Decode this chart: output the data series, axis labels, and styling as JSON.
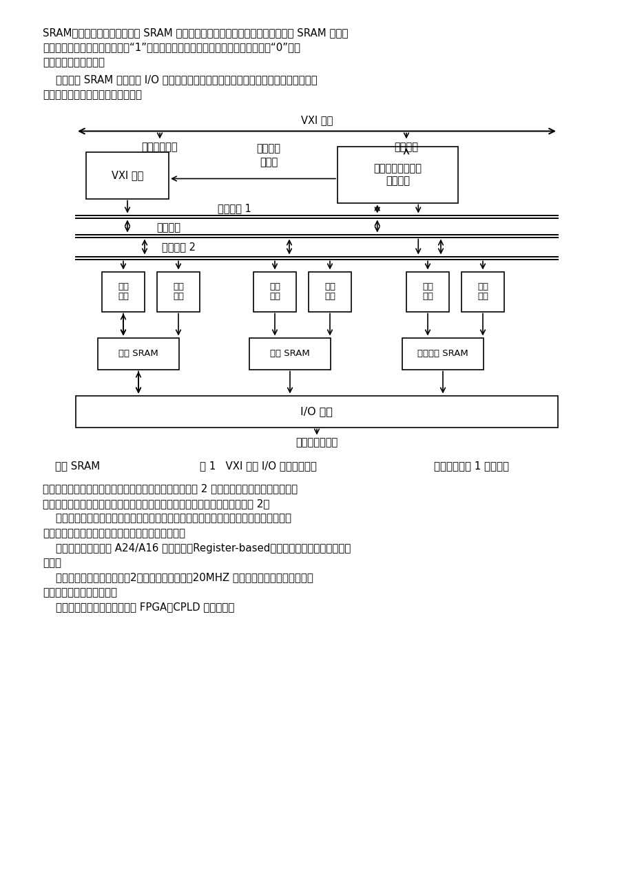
{
  "bg_color": "#ffffff",
  "text_color": "#000000",
  "para1_l1": "SRAM用于存储测试形式，响应 SRAM 用于存储被测电路板的输出响应，状态操纵 SRAM 用于操",
  "para1_l2": "纵通道状态。当状态操纵位等于“1”时，通道设置为鼓励形式；当状态操纵位等于“0”时，",
  "para1_l3": "通道设置为响应形式。",
  "para2_l1": "    状态操纵 SRAM 能使数字 I/O 通道的方向动态地改变，因而能方便地模仿数据的双向流",
  "para2_l2": "湬。例如，模仿单片机的数据总线。",
  "vxi_bus_label": "VXI 总线",
  "addr_data_bus": "地址数据总线",
  "sync_clock": "同步时钟",
  "timing_ctrl_l1": "定时和控",
  "timing_ctrl_l2": "制信号",
  "vxi_interface": "VXI 接口",
  "timing_gen_l1": "时序、操纵和地址",
  "timing_gen_l2": "信号产生",
  "addr_bus1": "地址总线 1",
  "data_bus_label": "数据总线",
  "addr_bus2": "地址总线 2",
  "data_if": "数据\n接口",
  "addr_sel": "地址\n选择",
  "resp_sram": "响应 SRAM",
  "stim_sram": "鼓励 SRAM",
  "state_sram": "状态操纵 SRAM",
  "io_interface": "I/O 接口",
  "module_front": "模块前面板接口",
  "caption_left": "每种 SRAM",
  "caption_center": "图 1   VXI 数字 I/O 模块组成框图",
  "caption_right": "选择地址总线 1 时，所有",
  "para3_l1": "存储器能够由外部计算机进展数据读写；中选择地址总线 2 时，所有存储器的地址由本地产",
  "para3_l2": "生。在向被测试的电路板施加鼓励信号和采集输出响应期间，应选择地址总线 2。",
  "para4_l1": "    测试形式的产生、输出响应的录用和通道状态的操纵是同步工作的，在任何一个测试形",
  "para4_l2": "式下，每个通道都能够单独设置为鼓励或响应形式。",
  "para5_l1": "    本模块的操纵方式是 A24/A16 存放器基（Register-based）方式，数据传输方式采纳块",
  "para5_l2": "传输。",
  "para6_l1": "    通道模块的同步时钟信号有2种选择：模块自带的20MHZ 时钟和来自于背板总线上的由",
  "para6_l2": "另一模块产生的同步时钟。",
  "para7": "    模块的操纵电路由多片大规模 FPGA、CPLD 器件实现。"
}
